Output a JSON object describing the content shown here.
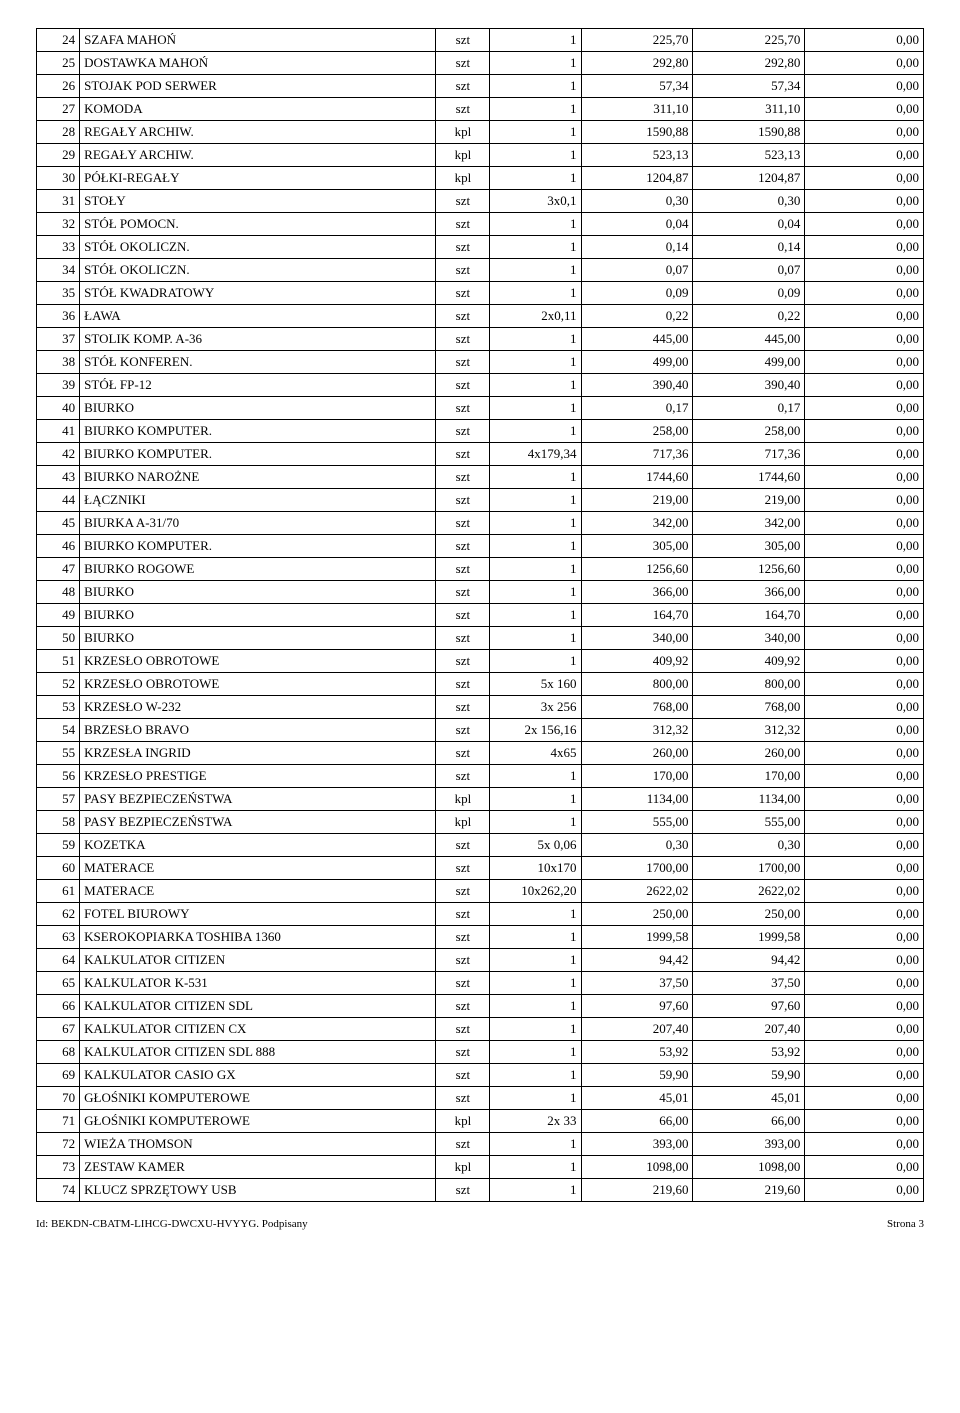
{
  "table": {
    "columns": [
      {
        "key": "num",
        "class": "col-num"
      },
      {
        "key": "name",
        "class": "col-name"
      },
      {
        "key": "unit",
        "class": "col-unit"
      },
      {
        "key": "qty",
        "class": "col-qty"
      },
      {
        "key": "v1",
        "class": "col-val1"
      },
      {
        "key": "v2",
        "class": "col-val2"
      },
      {
        "key": "v3",
        "class": "col-val3"
      }
    ],
    "rows": [
      {
        "num": "24",
        "name": "SZAFA MAHOŃ",
        "unit": "szt",
        "qty": "1",
        "v1": "225,70",
        "v2": "225,70",
        "v3": "0,00"
      },
      {
        "num": "25",
        "name": "DOSTAWKA MAHOŃ",
        "unit": "szt",
        "qty": "1",
        "v1": "292,80",
        "v2": "292,80",
        "v3": "0,00"
      },
      {
        "num": "26",
        "name": "STOJAK POD SERWER",
        "unit": "szt",
        "qty": "1",
        "v1": "57,34",
        "v2": "57,34",
        "v3": "0,00"
      },
      {
        "num": "27",
        "name": "KOMODA",
        "unit": "szt",
        "qty": "1",
        "v1": "311,10",
        "v2": "311,10",
        "v3": "0,00"
      },
      {
        "num": "28",
        "name": "REGAŁY ARCHIW.",
        "unit": "kpl",
        "qty": "1",
        "v1": "1590,88",
        "v2": "1590,88",
        "v3": "0,00"
      },
      {
        "num": "29",
        "name": "REGAŁY ARCHIW.",
        "unit": "kpl",
        "qty": "1",
        "v1": "523,13",
        "v2": "523,13",
        "v3": "0,00"
      },
      {
        "num": "30",
        "name": "PÓŁKI-REGAŁY",
        "unit": "kpl",
        "qty": "1",
        "v1": "1204,87",
        "v2": "1204,87",
        "v3": "0,00"
      },
      {
        "num": "31",
        "name": "STOŁY",
        "unit": "szt",
        "qty": "3x0,1",
        "v1": "0,30",
        "v2": "0,30",
        "v3": "0,00"
      },
      {
        "num": "32",
        "name": "STÓŁ POMOCN.",
        "unit": "szt",
        "qty": "1",
        "v1": "0,04",
        "v2": "0,04",
        "v3": "0,00"
      },
      {
        "num": "33",
        "name": "STÓŁ OKOLICZN.",
        "unit": "szt",
        "qty": "1",
        "v1": "0,14",
        "v2": "0,14",
        "v3": "0,00"
      },
      {
        "num": "34",
        "name": "STÓŁ OKOLICZN.",
        "unit": "szt",
        "qty": "1",
        "v1": "0,07",
        "v2": "0,07",
        "v3": "0,00"
      },
      {
        "num": "35",
        "name": "STÓŁ KWADRATOWY",
        "unit": "szt",
        "qty": "1",
        "v1": "0,09",
        "v2": "0,09",
        "v3": "0,00"
      },
      {
        "num": "36",
        "name": "ŁAWA",
        "unit": "szt",
        "qty": "2x0,11",
        "v1": "0,22",
        "v2": "0,22",
        "v3": "0,00"
      },
      {
        "num": "37",
        "name": "STOLIK KOMP. A-36",
        "unit": "szt",
        "qty": "1",
        "v1": "445,00",
        "v2": "445,00",
        "v3": "0,00"
      },
      {
        "num": "38",
        "name": "STÓŁ KONFEREN.",
        "unit": "szt",
        "qty": "1",
        "v1": "499,00",
        "v2": "499,00",
        "v3": "0,00"
      },
      {
        "num": "39",
        "name": "STÓŁ FP-12",
        "unit": "szt",
        "qty": "1",
        "v1": "390,40",
        "v2": "390,40",
        "v3": "0,00"
      },
      {
        "num": "40",
        "name": "BIURKO",
        "unit": "szt",
        "qty": "1",
        "v1": "0,17",
        "v2": "0,17",
        "v3": "0,00"
      },
      {
        "num": "41",
        "name": "BIURKO KOMPUTER.",
        "unit": "szt",
        "qty": "1",
        "v1": "258,00",
        "v2": "258,00",
        "v3": "0,00"
      },
      {
        "num": "42",
        "name": "BIURKO KOMPUTER.",
        "unit": "szt",
        "qty": "4x179,34",
        "v1": "717,36",
        "v2": "717,36",
        "v3": "0,00"
      },
      {
        "num": "43",
        "name": "BIURKO NAROŻNE",
        "unit": "szt",
        "qty": "1",
        "v1": "1744,60",
        "v2": "1744,60",
        "v3": "0,00"
      },
      {
        "num": "44",
        "name": "ŁĄCZNIKI",
        "unit": "szt",
        "qty": "1",
        "v1": "219,00",
        "v2": "219,00",
        "v3": "0,00"
      },
      {
        "num": "45",
        "name": "BIURKA A-31/70",
        "unit": "szt",
        "qty": "1",
        "v1": "342,00",
        "v2": "342,00",
        "v3": "0,00"
      },
      {
        "num": "46",
        "name": "BIURKO KOMPUTER.",
        "unit": "szt",
        "qty": "1",
        "v1": "305,00",
        "v2": "305,00",
        "v3": "0,00"
      },
      {
        "num": "47",
        "name": "BIURKO ROGOWE",
        "unit": "szt",
        "qty": "1",
        "v1": "1256,60",
        "v2": "1256,60",
        "v3": "0,00"
      },
      {
        "num": "48",
        "name": "BIURKO",
        "unit": "szt",
        "qty": "1",
        "v1": "366,00",
        "v2": "366,00",
        "v3": "0,00"
      },
      {
        "num": "49",
        "name": "BIURKO",
        "unit": "szt",
        "qty": "1",
        "v1": "164,70",
        "v2": "164,70",
        "v3": "0,00"
      },
      {
        "num": "50",
        "name": "BIURKO",
        "unit": "szt",
        "qty": "1",
        "v1": "340,00",
        "v2": "340,00",
        "v3": "0,00"
      },
      {
        "num": "51",
        "name": "KRZESŁO OBROTOWE",
        "unit": "szt",
        "qty": "1",
        "v1": "409,92",
        "v2": "409,92",
        "v3": "0,00"
      },
      {
        "num": "52",
        "name": "KRZESŁO OBROTOWE",
        "unit": "szt",
        "qty": "5x 160",
        "v1": "800,00",
        "v2": "800,00",
        "v3": "0,00"
      },
      {
        "num": "53",
        "name": "KRZESŁO W-232",
        "unit": "szt",
        "qty": "3x 256",
        "v1": "768,00",
        "v2": "768,00",
        "v3": "0,00"
      },
      {
        "num": "54",
        "name": "BRZESŁO BRAVO",
        "unit": "szt",
        "qty": "2x 156,16",
        "v1": "312,32",
        "v2": "312,32",
        "v3": "0,00"
      },
      {
        "num": "55",
        "name": "KRZESŁA INGRID",
        "unit": "szt",
        "qty": "4x65",
        "v1": "260,00",
        "v2": "260,00",
        "v3": "0,00"
      },
      {
        "num": "56",
        "name": "KRZESŁO PRESTIGE",
        "unit": "szt",
        "qty": "1",
        "v1": "170,00",
        "v2": "170,00",
        "v3": "0,00"
      },
      {
        "num": "57",
        "name": "PASY BEZPIECZEŃSTWA",
        "unit": "kpl",
        "qty": "1",
        "v1": "1134,00",
        "v2": "1134,00",
        "v3": "0,00"
      },
      {
        "num": "58",
        "name": "PASY BEZPIECZEŃSTWA",
        "unit": "kpl",
        "qty": "1",
        "v1": "555,00",
        "v2": "555,00",
        "v3": "0,00"
      },
      {
        "num": "59",
        "name": "KOZETKA",
        "unit": "szt",
        "qty": "5x 0,06",
        "v1": "0,30",
        "v2": "0,30",
        "v3": "0,00"
      },
      {
        "num": "60",
        "name": "MATERACE",
        "unit": "szt",
        "qty": "10x170",
        "v1": "1700,00",
        "v2": "1700,00",
        "v3": "0,00"
      },
      {
        "num": "61",
        "name": "MATERACE",
        "unit": "szt",
        "qty": "10x262,20",
        "v1": "2622,02",
        "v2": "2622,02",
        "v3": "0,00"
      },
      {
        "num": "62",
        "name": "FOTEL BIUROWY",
        "unit": "szt",
        "qty": "1",
        "v1": "250,00",
        "v2": "250,00",
        "v3": "0,00"
      },
      {
        "num": "63",
        "name": "KSEROKOPIARKA TOSHIBA 1360",
        "unit": "szt",
        "qty": "1",
        "v1": "1999,58",
        "v2": "1999,58",
        "v3": "0,00"
      },
      {
        "num": "64",
        "name": "KALKULATOR CITIZEN",
        "unit": "szt",
        "qty": "1",
        "v1": "94,42",
        "v2": "94,42",
        "v3": "0,00"
      },
      {
        "num": "65",
        "name": "KALKULATOR K-531",
        "unit": "szt",
        "qty": "1",
        "v1": "37,50",
        "v2": "37,50",
        "v3": "0,00"
      },
      {
        "num": "66",
        "name": "KALKULATOR CITIZEN SDL",
        "unit": "szt",
        "qty": "1",
        "v1": "97,60",
        "v2": "97,60",
        "v3": "0,00"
      },
      {
        "num": "67",
        "name": "KALKULATOR CITIZEN CX",
        "unit": "szt",
        "qty": "1",
        "v1": "207,40",
        "v2": "207,40",
        "v3": "0,00"
      },
      {
        "num": "68",
        "name": "KALKULATOR CITIZEN SDL 888",
        "unit": "szt",
        "qty": "1",
        "v1": "53,92",
        "v2": "53,92",
        "v3": "0,00"
      },
      {
        "num": "69",
        "name": "KALKULATOR CASIO GX",
        "unit": "szt",
        "qty": "1",
        "v1": "59,90",
        "v2": "59,90",
        "v3": "0,00"
      },
      {
        "num": "70",
        "name": "GŁOŚNIKI KOMPUTEROWE",
        "unit": "szt",
        "qty": "1",
        "v1": "45,01",
        "v2": "45,01",
        "v3": "0,00"
      },
      {
        "num": "71",
        "name": "GŁOŚNIKI KOMPUTEROWE",
        "unit": "kpl",
        "qty": "2x 33",
        "v1": "66,00",
        "v2": "66,00",
        "v3": "0,00"
      },
      {
        "num": "72",
        "name": "WIEŻA THOMSON",
        "unit": "szt",
        "qty": "1",
        "v1": "393,00",
        "v2": "393,00",
        "v3": "0,00"
      },
      {
        "num": "73",
        "name": "ZESTAW KAMER",
        "unit": "kpl",
        "qty": "1",
        "v1": "1098,00",
        "v2": "1098,00",
        "v3": "0,00"
      },
      {
        "num": "74",
        "name": "KLUCZ SPRZĘTOWY USB",
        "unit": "szt",
        "qty": "1",
        "v1": "219,60",
        "v2": "219,60",
        "v3": "0,00"
      }
    ]
  },
  "footer": {
    "left": "Id: BEKDN-CBATM-LIHCG-DWCXU-HVYYG. Podpisany",
    "right": "Strona 3"
  }
}
